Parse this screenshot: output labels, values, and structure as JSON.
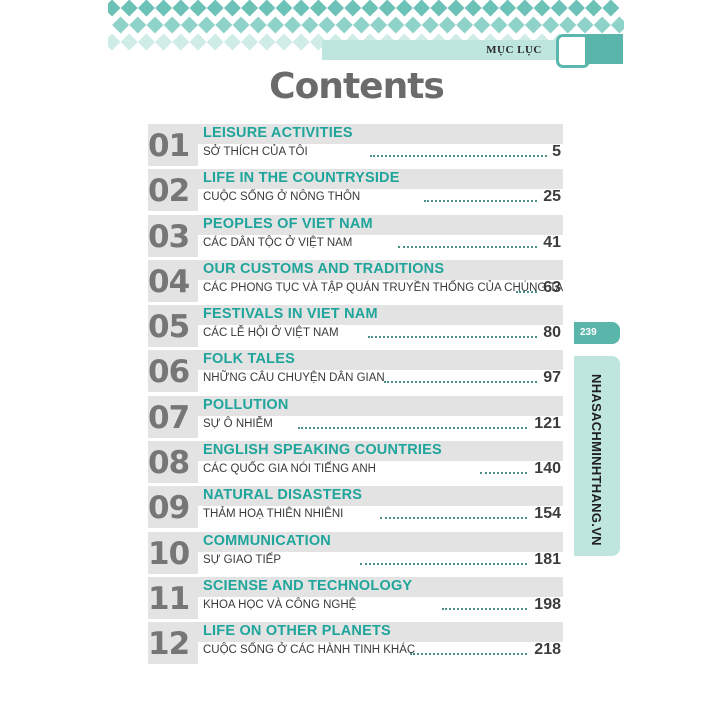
{
  "header": {
    "label": "MỤC LỤC"
  },
  "title": "Contents",
  "side": {
    "page_number": "239",
    "website": "NHASACHMINHTHANG.VN"
  },
  "colors": {
    "teal": "#1fa59b",
    "light_teal": "#bfe5df",
    "gray_band": "#e3e3e3"
  },
  "chapters": [
    {
      "num": "01",
      "en": "LEISURE ACTIVITIES",
      "vi": "SỞ THÍCH CỦA TÔI",
      "page": "5"
    },
    {
      "num": "02",
      "en": "LIFE IN THE COUNTRYSIDE",
      "vi": "CUỘC SỐNG Ở NÔNG THÔN",
      "page": "25"
    },
    {
      "num": "03",
      "en": "PEOPLES OF VIET NAM",
      "vi": "CÁC DÂN TỘC Ở VIỆT NAM",
      "page": "41"
    },
    {
      "num": "04",
      "en": "OUR CUSTOMS AND TRADITIONS",
      "vi": "CÁC PHONG TỤC VÀ TẬP QUÁN TRUYỀN THỐNG CỦA CHÚNG TA",
      "page": "63"
    },
    {
      "num": "05",
      "en": "FESTIVALS IN VIET NAM",
      "vi": "CÁC LỄ HỘI Ở VIỆT NAM",
      "page": "80"
    },
    {
      "num": "06",
      "en": "FOLK TALES",
      "vi": "NHỮNG CÂU CHUYỆN DÂN GIAN",
      "page": "97"
    },
    {
      "num": "07",
      "en": "POLLUTION",
      "vi": "SỰ Ô NHIỄM",
      "page": "121"
    },
    {
      "num": "08",
      "en": "ENGLISH SPEAKING COUNTRIES",
      "vi": "CÁC QUỐC GIA NÓI TIẾNG ANH",
      "page": "140"
    },
    {
      "num": "09",
      "en": "NATURAL DISASTERS",
      "vi": "THẢM HOẠ THIÊN NHIÊNI",
      "page": "154"
    },
    {
      "num": "10",
      "en": "COMMUNICATION",
      "vi": "SỰ GIAO TIẾP",
      "page": "181"
    },
    {
      "num": "11",
      "en": "SCIENSE AND TECHNOLOGY",
      "vi": "KHOA HỌC VÀ CÔNG NGHỆ",
      "page": "198"
    },
    {
      "num": "12",
      "en": "LIFE ON OTHER PLANETS",
      "vi": "CUỘC SỐNG Ở CÁC HÀNH TINH KHÁC",
      "page": "218"
    }
  ]
}
